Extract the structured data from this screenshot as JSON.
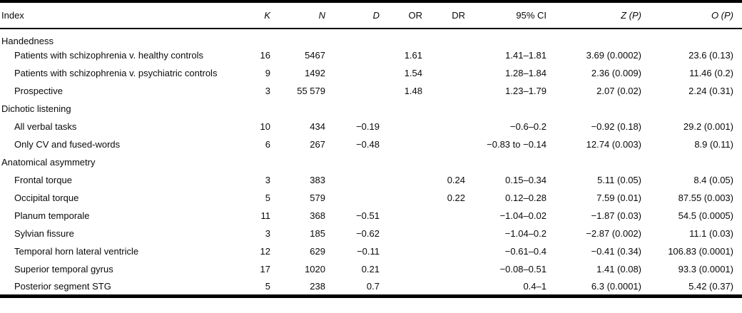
{
  "table": {
    "columns": [
      {
        "label": "Index",
        "italic": false
      },
      {
        "label": "K",
        "italic": true
      },
      {
        "label": "N",
        "italic": true
      },
      {
        "label": "D",
        "italic": true
      },
      {
        "label": "OR",
        "italic": false
      },
      {
        "label": "DR",
        "italic": false
      },
      {
        "label": "95% CI",
        "italic": false
      },
      {
        "label": "Z (P)",
        "italic": true
      },
      {
        "label": "O (P)",
        "italic": true
      }
    ],
    "rows": [
      {
        "type": "section",
        "label": "Handedness"
      },
      {
        "type": "data",
        "label": "Patients with schizophrenia v. healthy controls",
        "cells": [
          "16",
          "5467",
          "",
          "1.61",
          "",
          "1.41–1.81",
          "3.69 (0.0002)",
          "23.6 (0.13)"
        ]
      },
      {
        "type": "data",
        "label": "Patients with schizophrenia v. psychiatric controls",
        "cells": [
          "9",
          "1492",
          "",
          "1.54",
          "",
          "1.28–1.84",
          "2.36 (0.009)",
          "11.46 (0.2)"
        ]
      },
      {
        "type": "data",
        "label": "Prospective",
        "cells": [
          "3",
          "55 579",
          "",
          "1.48",
          "",
          "1.23–1.79",
          "2.07 (0.02)",
          "2.24 (0.31)"
        ]
      },
      {
        "type": "section",
        "label": "Dichotic listening"
      },
      {
        "type": "data",
        "label": "All verbal tasks",
        "cells": [
          "10",
          "434",
          "−0.19",
          "",
          "",
          "−0.6–0.2",
          "−0.92 (0.18)",
          "29.2 (0.001)"
        ]
      },
      {
        "type": "data",
        "label": "Only CV and fused-words",
        "cells": [
          "6",
          "267",
          "−0.48",
          "",
          "",
          "−0.83 to −0.14",
          "12.74 (0.003)",
          "8.9 (0.11)"
        ]
      },
      {
        "type": "section",
        "label": "Anatomical asymmetry"
      },
      {
        "type": "data",
        "label": "Frontal torque",
        "cells": [
          "3",
          "383",
          "",
          "",
          "0.24",
          "0.15–0.34",
          "5.11 (0.05)",
          "8.4 (0.05)"
        ]
      },
      {
        "type": "data",
        "label": "Occipital torque",
        "cells": [
          "5",
          "579",
          "",
          "",
          "0.22",
          "0.12–0.28",
          "7.59 (0.01)",
          "87.55 (0.003)"
        ]
      },
      {
        "type": "data",
        "label": "Planum temporale",
        "cells": [
          "11",
          "368",
          "−0.51",
          "",
          "",
          "−1.04–0.02",
          "−1.87 (0.03)",
          "54.5 (0.0005)"
        ]
      },
      {
        "type": "data",
        "label": "Sylvian fissure",
        "cells": [
          "3",
          "185",
          "−0.62",
          "",
          "",
          "−1.04–0.2",
          "−2.87 (0.002)",
          "11.1 (0.03)"
        ]
      },
      {
        "type": "data",
        "label": "Temporal horn lateral ventricle",
        "cells": [
          "12",
          "629",
          "−0.11",
          "",
          "",
          "−0.61–0.4",
          "−0.41 (0.34)",
          "106.83 (0.0001)"
        ]
      },
      {
        "type": "data",
        "label": "Superior temporal gyrus",
        "cells": [
          "17",
          "1020",
          "0.21",
          "",
          "",
          "−0.08–0.51",
          "1.41 (0.08)",
          "93.3 (0.0001)"
        ]
      },
      {
        "type": "data",
        "label": "Posterior segment STG",
        "cells": [
          "5",
          "238",
          "0.7",
          "",
          "",
          "0.4–1",
          "6.3 (0.0001)",
          "5.42 (0.37)"
        ]
      }
    ]
  }
}
